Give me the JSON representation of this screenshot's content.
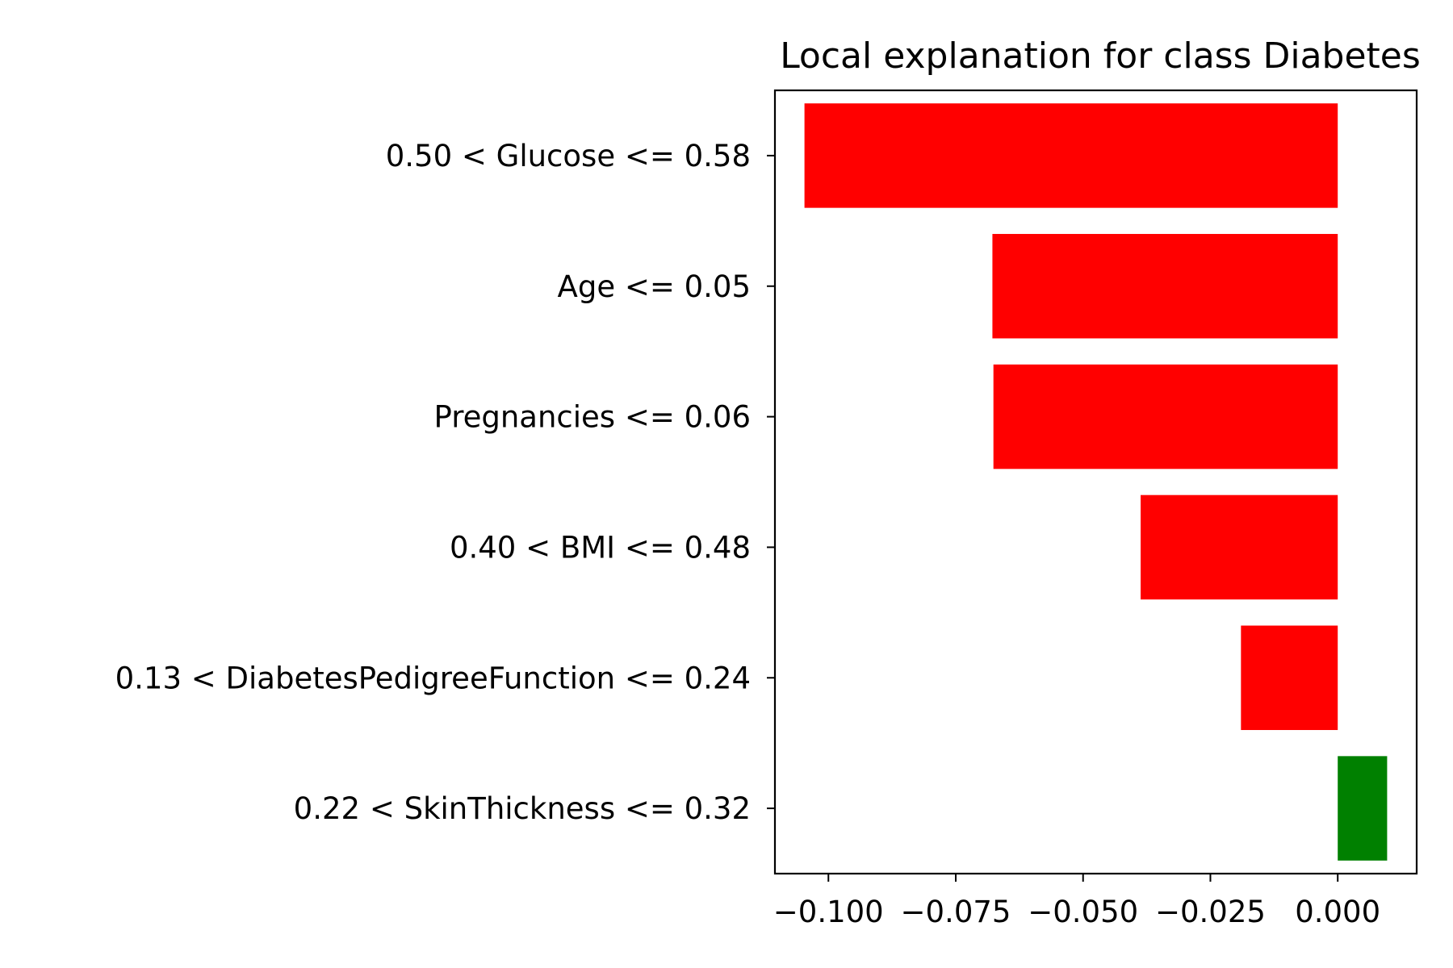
{
  "chart_data": {
    "type": "bar",
    "orientation": "horizontal",
    "title": "Local explanation for class Diabetes",
    "xlabel": "",
    "ylabel": "",
    "categories": [
      "0.50 < Glucose <= 0.58",
      "Age <= 0.05",
      "Pregnancies <= 0.06",
      "0.40 < BMI <= 0.48",
      "0.13 < DiabetesPedigreeFunction <= 0.24",
      "0.22 < SkinThickness <= 0.32"
    ],
    "values": [
      -0.1047,
      -0.0678,
      -0.0676,
      -0.0387,
      -0.019,
      0.0097
    ],
    "xlim": [
      -0.1105,
      0.0155
    ],
    "xticks": [
      -0.1,
      -0.075,
      -0.05,
      -0.025,
      0.0
    ],
    "xtick_labels": [
      "−0.100",
      "−0.075",
      "−0.050",
      "−0.025",
      "0.000"
    ],
    "colors": {
      "negative": "#ff0000",
      "positive": "#008000"
    },
    "grid": false,
    "legend": "none"
  }
}
